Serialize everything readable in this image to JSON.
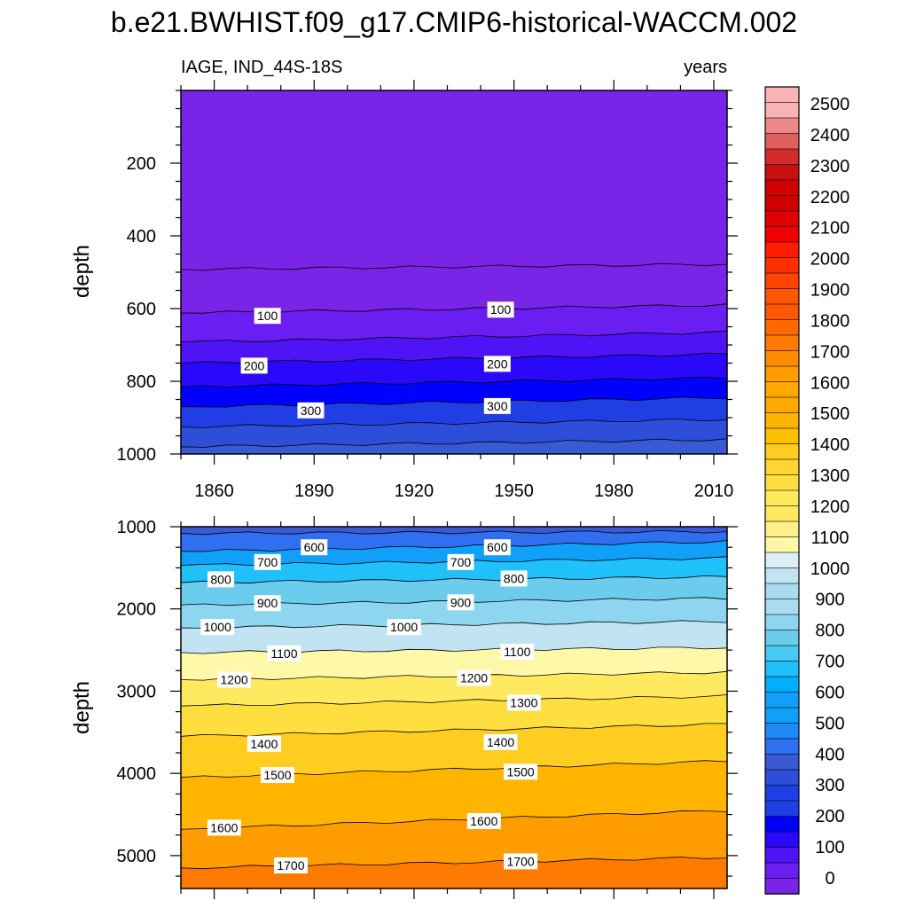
{
  "chart_data": {
    "type": "contour",
    "title": "b.e21.BWHIST.f09_g17.CMIP6-historical-WACCM.002",
    "left_subtitle": "IAGE, IND_44S-18S",
    "right_subtitle": "years",
    "x": {
      "range": [
        1850,
        2014
      ],
      "tick_values": [
        1860,
        1890,
        1920,
        1950,
        1980,
        2010
      ],
      "tick_labels": [
        "1860",
        "1890",
        "1920",
        "1950",
        "1980",
        "2010"
      ]
    },
    "panels": [
      {
        "ylabel": "depth",
        "y_range": [
          0,
          1000
        ],
        "tick_values": [
          200,
          400,
          600,
          800,
          1000
        ],
        "tick_labels": [
          "200",
          "400",
          "600",
          "800",
          "1000"
        ],
        "contours": [
          {
            "level": 50,
            "y_start": 492,
            "y_end": 478
          },
          {
            "level": 100,
            "y_start": 612,
            "y_end": 590
          },
          {
            "level": 150,
            "y_start": 692,
            "y_end": 665
          },
          {
            "level": 200,
            "y_start": 750,
            "y_end": 725
          },
          {
            "level": 250,
            "y_start": 815,
            "y_end": 790
          },
          {
            "level": 300,
            "y_start": 870,
            "y_end": 845
          },
          {
            "level": 350,
            "y_start": 925,
            "y_end": 905
          },
          {
            "level": 400,
            "y_start": 980,
            "y_end": 960
          }
        ],
        "labels": [
          {
            "text": "100",
            "x": 1876,
            "y": 620
          },
          {
            "text": "100",
            "x": 1946,
            "y": 603
          },
          {
            "text": "200",
            "x": 1872,
            "y": 757
          },
          {
            "text": "200",
            "x": 1945,
            "y": 752
          },
          {
            "text": "300",
            "x": 1889,
            "y": 880
          },
          {
            "text": "300",
            "x": 1945,
            "y": 868
          }
        ]
      },
      {
        "ylabel": "depth",
        "y_range": [
          1000,
          5400
        ],
        "tick_values": [
          1000,
          2000,
          3000,
          4000,
          5000
        ],
        "tick_labels": [
          "1000",
          "2000",
          "3000",
          "4000",
          "5000"
        ],
        "contours": [
          {
            "level": 500,
            "y_start": 1080,
            "y_end": 1060
          },
          {
            "level": 600,
            "y_start": 1300,
            "y_end": 1180
          },
          {
            "level": 700,
            "y_start": 1470,
            "y_end": 1380
          },
          {
            "level": 800,
            "y_start": 1680,
            "y_end": 1610
          },
          {
            "level": 900,
            "y_start": 1950,
            "y_end": 1870
          },
          {
            "level": 1000,
            "y_start": 2230,
            "y_end": 2150
          },
          {
            "level": 1100,
            "y_start": 2530,
            "y_end": 2470
          },
          {
            "level": 1200,
            "y_start": 2860,
            "y_end": 2770
          },
          {
            "level": 1300,
            "y_start": 3180,
            "y_end": 3060
          },
          {
            "level": 1400,
            "y_start": 3550,
            "y_end": 3400
          },
          {
            "level": 1500,
            "y_start": 4050,
            "y_end": 3850
          },
          {
            "level": 1600,
            "y_start": 4680,
            "y_end": 4450
          },
          {
            "level": 1700,
            "y_start": 5150,
            "y_end": 5020
          }
        ],
        "labels": [
          {
            "text": "600",
            "x": 1890,
            "y": 1250
          },
          {
            "text": "600",
            "x": 1945,
            "y": 1250
          },
          {
            "text": "700",
            "x": 1876,
            "y": 1430
          },
          {
            "text": "700",
            "x": 1934,
            "y": 1430
          },
          {
            "text": "800",
            "x": 1862,
            "y": 1640
          },
          {
            "text": "800",
            "x": 1950,
            "y": 1630
          },
          {
            "text": "900",
            "x": 1876,
            "y": 1930
          },
          {
            "text": "900",
            "x": 1934,
            "y": 1920
          },
          {
            "text": "1000",
            "x": 1861,
            "y": 2220
          },
          {
            "text": "1000",
            "x": 1917,
            "y": 2220
          },
          {
            "text": "1100",
            "x": 1881,
            "y": 2540
          },
          {
            "text": "1100",
            "x": 1951,
            "y": 2520
          },
          {
            "text": "1200",
            "x": 1866,
            "y": 2860
          },
          {
            "text": "1200",
            "x": 1938,
            "y": 2840
          },
          {
            "text": "1300",
            "x": 1953,
            "y": 3140
          },
          {
            "text": "1400",
            "x": 1875,
            "y": 3640
          },
          {
            "text": "1400",
            "x": 1946,
            "y": 3620
          },
          {
            "text": "1500",
            "x": 1879,
            "y": 4020
          },
          {
            "text": "1500",
            "x": 1952,
            "y": 3980
          },
          {
            "text": "1600",
            "x": 1863,
            "y": 4660
          },
          {
            "text": "1600",
            "x": 1941,
            "y": 4580
          },
          {
            "text": "1700",
            "x": 1883,
            "y": 5120
          },
          {
            "text": "1700",
            "x": 1952,
            "y": 5070
          }
        ]
      }
    ],
    "colorbar": {
      "levels": [
        0,
        100,
        200,
        300,
        400,
        500,
        600,
        700,
        800,
        900,
        1000,
        1100,
        1200,
        1300,
        1400,
        1500,
        1600,
        1700,
        1800,
        1900,
        2000,
        2100,
        2200,
        2300,
        2400,
        2500
      ],
      "labels": [
        "0",
        "100",
        "200",
        "300",
        "400",
        "500",
        "600",
        "700",
        "800",
        "900",
        "1000",
        "1100",
        "1200",
        "1300",
        "1400",
        "1500",
        "1600",
        "1700",
        "1800",
        "1900",
        "2000",
        "2100",
        "2200",
        "2300",
        "2400",
        "2500"
      ],
      "colors": [
        "#7a24e8",
        "#6a1ef2",
        "#4f14f6",
        "#2a08fa",
        "#0000ff",
        "#1f3fe4",
        "#2c4ed8",
        "#3a5ad3",
        "#2f6ff0",
        "#1d8af5",
        "#10a0fa",
        "#00b0ff",
        "#20c0fa",
        "#48c8f2",
        "#6cccee",
        "#8ed6f0",
        "#aadcf0",
        "#c2e4f2",
        "#dceff8",
        "#fff8a8",
        "#fff08a",
        "#ffe95e",
        "#ffdf40",
        "#ffd530",
        "#ffcc20",
        "#ffc000",
        "#ffb400",
        "#ffa800",
        "#ff9c00",
        "#ff8c00",
        "#ff7a00",
        "#ff6800",
        "#ff5600",
        "#ff4400",
        "#ff3000",
        "#ff1c00",
        "#f00000",
        "#e00000",
        "#d00000",
        "#c81010",
        "#d42a2a",
        "#e06060",
        "#ec8888",
        "#f8b4b4"
      ],
      "band_count": 52
    }
  }
}
